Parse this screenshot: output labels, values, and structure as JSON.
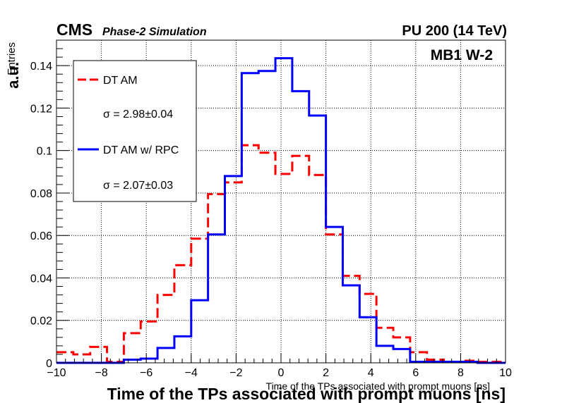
{
  "header": {
    "experiment": "CMS",
    "subtitle": "Phase-2 Simulation",
    "right_label": "PU 200 (14 TeV)",
    "station": "MB1 W-2"
  },
  "colors": {
    "dt_am": "#ff0000",
    "dt_am_rpc": "#0000ff",
    "axis": "#000000",
    "grid": "#000000"
  },
  "legend": {
    "entries": [
      {
        "label": "DT AM",
        "sigma_text": "σ = 2.98±0.04",
        "series": 0
      },
      {
        "label": "DT AM w/ RPC",
        "sigma_text": "σ = 2.07±0.03",
        "series": 1
      }
    ]
  },
  "chart_data": {
    "type": "histogram",
    "xlabel": "Time of the TPs associated with prompt muons [ns]",
    "xlabel_small": "Time of the TPs associated with prompt muons [ns]",
    "ylabel": "a.u.",
    "ylabel_small": "Entries",
    "xlim": [
      -10,
      10
    ],
    "ylim": [
      0,
      0.152
    ],
    "xticks": [
      -10,
      -8,
      -6,
      -4,
      -2,
      0,
      2,
      4,
      6,
      8,
      10
    ],
    "xtick_labels": [
      "−10",
      "−8",
      "−6",
      "−4",
      "−2",
      "0",
      "2",
      "4",
      "6",
      "8",
      "10"
    ],
    "yticks": [
      0,
      0.02,
      0.04,
      0.06,
      0.08,
      0.1,
      0.12,
      0.14
    ],
    "ytick_labels": [
      "0",
      "0.02",
      "0.04",
      "0.06",
      "0.08",
      "0.1",
      "0.12",
      "0.14"
    ],
    "grid": true,
    "bin_edges": [
      -10,
      -9.25,
      -8.5,
      -7.75,
      -7,
      -6.25,
      -5.5,
      -4.75,
      -4,
      -3.25,
      -2.5,
      -1.75,
      -1,
      -0.25,
      0.5,
      1.25,
      2,
      2.75,
      3.5,
      4.25,
      5,
      5.75,
      6.5,
      7.25,
      8,
      8.75,
      9.5,
      10
    ],
    "series": [
      {
        "name": "DT AM",
        "style": "dashed",
        "values": [
          0.005,
          0.004,
          0.0075,
          0.0005,
          0.014,
          0.0195,
          0.032,
          0.046,
          0.0585,
          0.0795,
          0.085,
          0.1025,
          0.099,
          0.089,
          0.0975,
          0.0885,
          0.0605,
          0.041,
          0.0325,
          0.0165,
          0.012,
          0.005,
          0.0015,
          0.0005,
          0.001,
          0.0005,
          0.0005
        ]
      },
      {
        "name": "DT AM w/ RPC",
        "style": "solid",
        "values": [
          0,
          0,
          0,
          0,
          0.0015,
          0.002,
          0.007,
          0.0125,
          0.0295,
          0.0605,
          0.088,
          0.1365,
          0.1375,
          0.1435,
          0.128,
          0.1165,
          0.064,
          0.0365,
          0.0215,
          0.008,
          0.0065,
          0.0005,
          0.0005,
          0.0005,
          0.0005,
          0,
          0
        ]
      }
    ]
  }
}
